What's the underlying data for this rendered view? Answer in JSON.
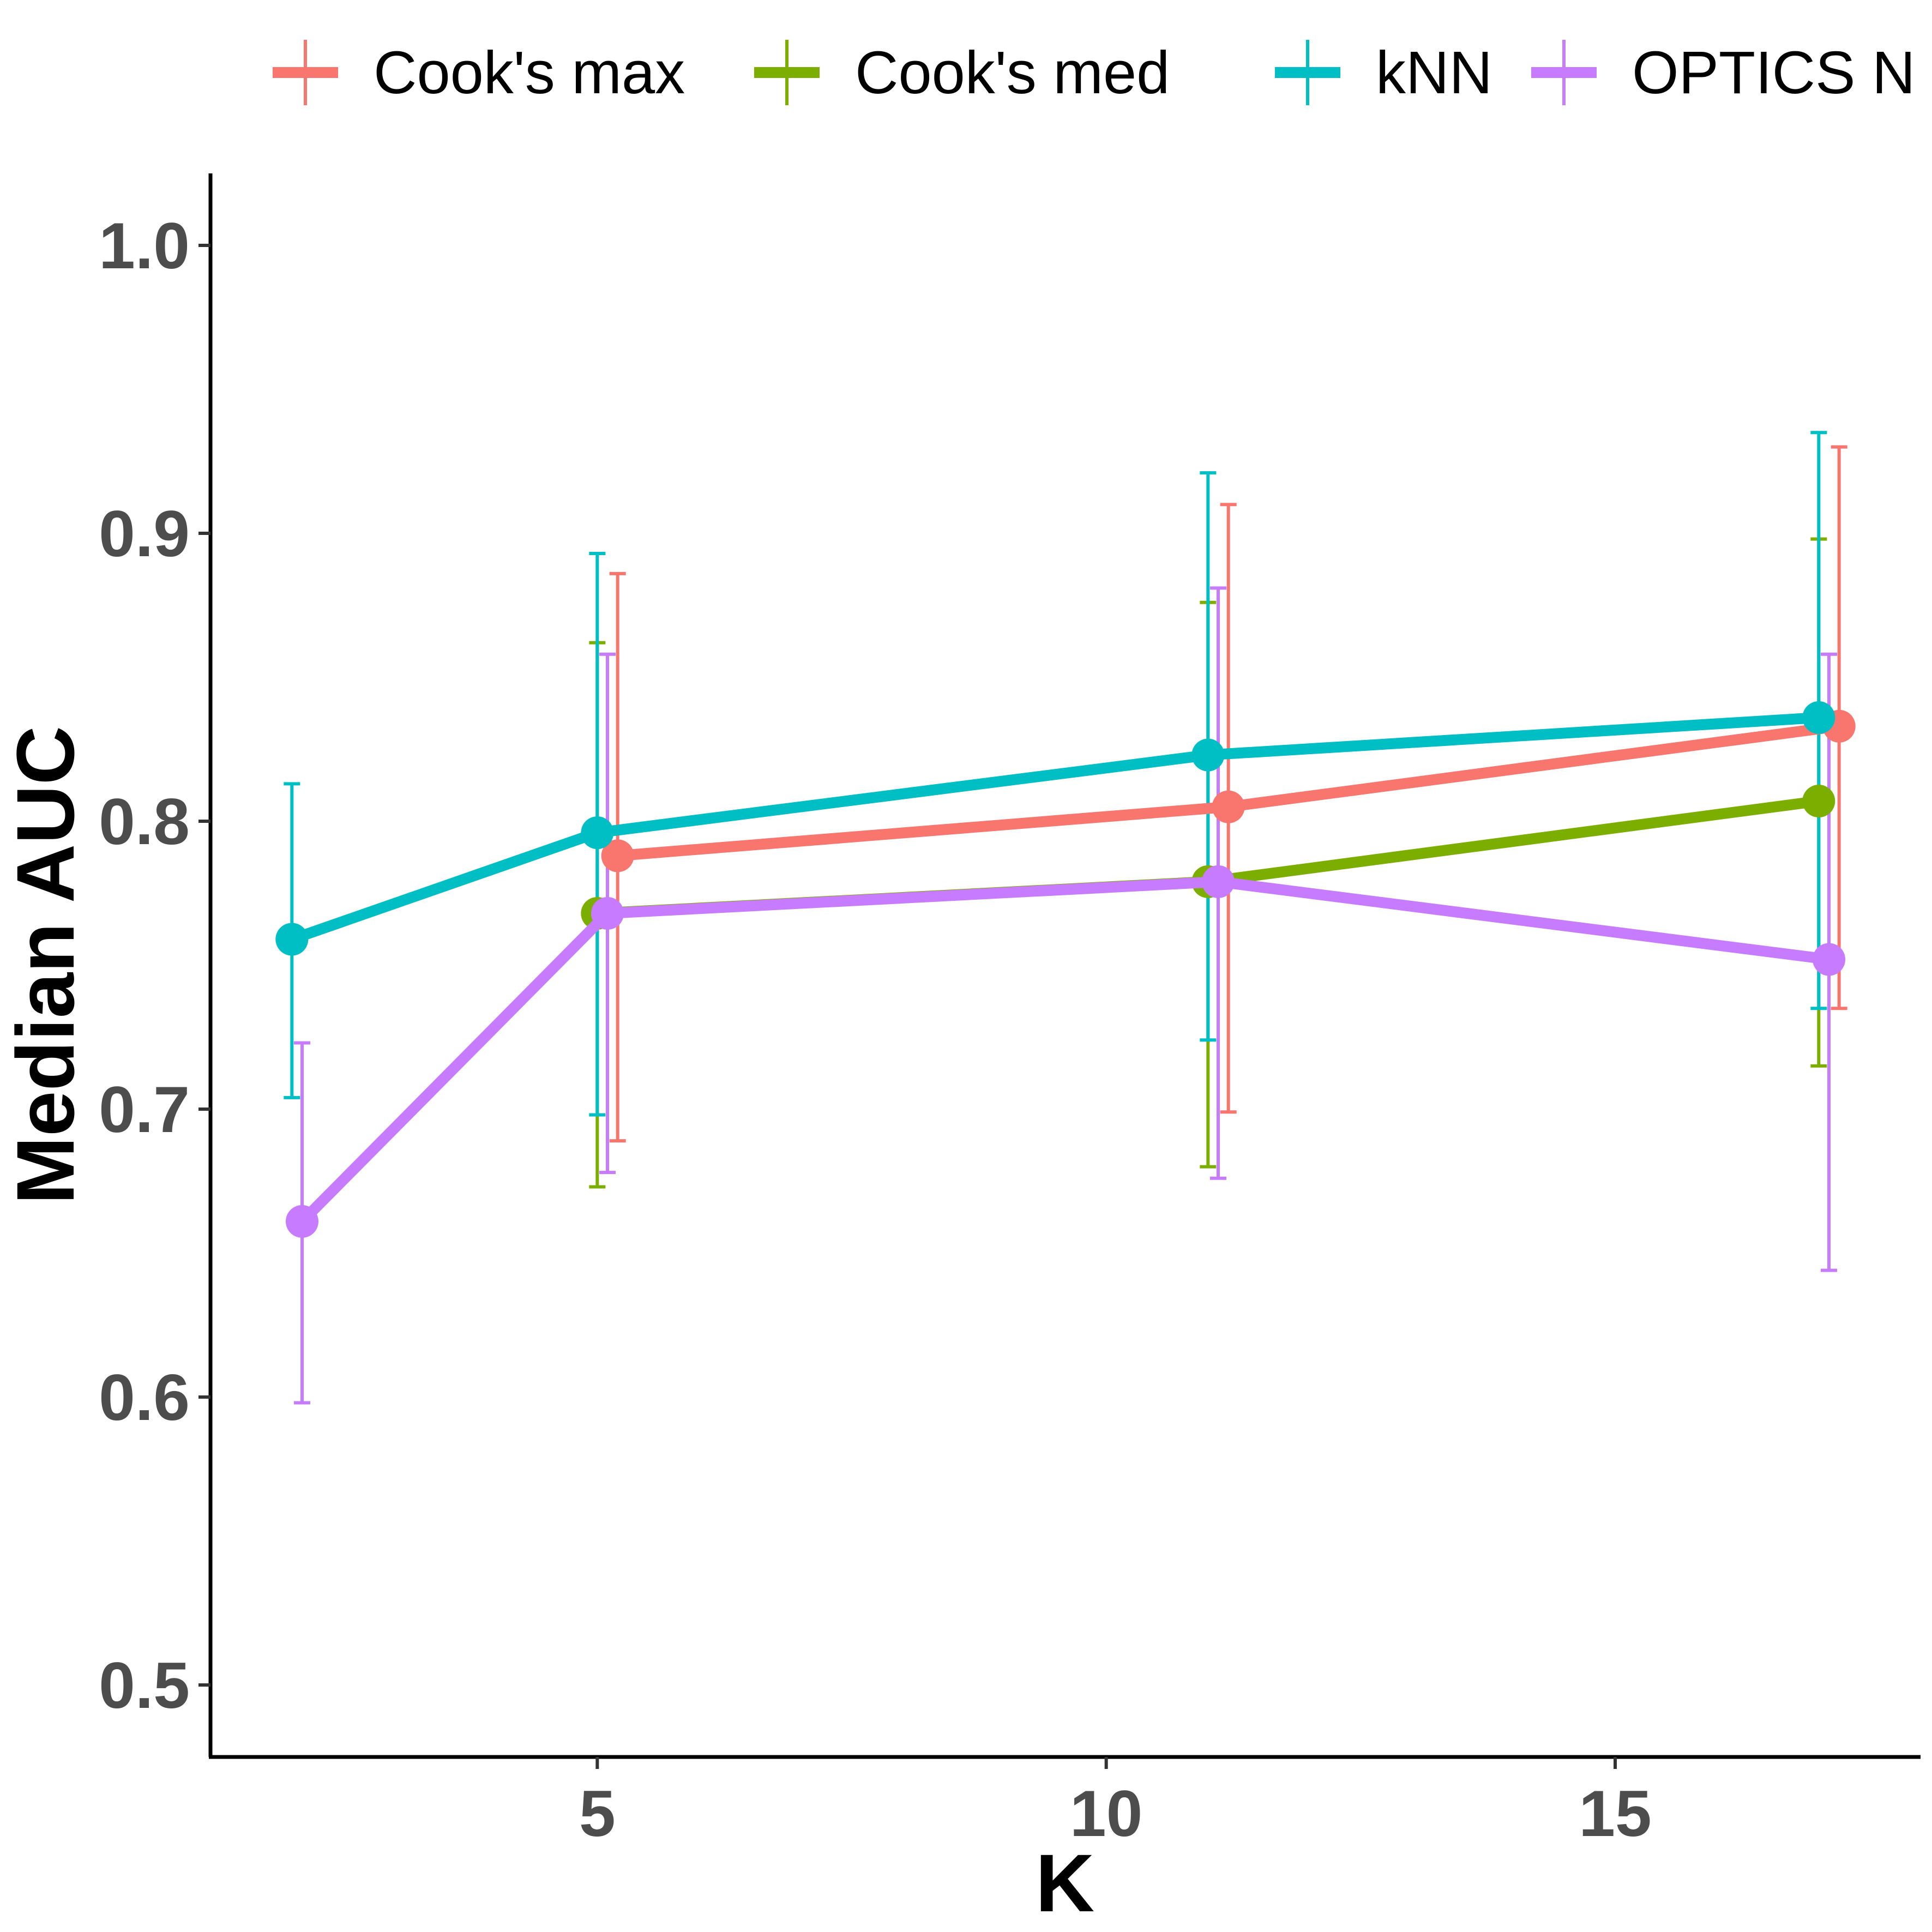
{
  "chart_data": {
    "type": "line",
    "xlabel": "K",
    "ylabel": "Median AUC",
    "xlim": [
      1.2,
      18.0
    ],
    "ylim": [
      0.475,
      1.025
    ],
    "x_ticks": [
      5,
      10,
      15
    ],
    "x_tick_labels": [
      "5",
      "10",
      "15"
    ],
    "y_ticks": [
      0.5,
      0.6,
      0.7,
      0.8,
      0.9,
      1.0
    ],
    "y_tick_labels": [
      "0.5",
      "0.6",
      "0.7",
      "0.8",
      "0.9",
      "1.0"
    ],
    "grid": false,
    "legend_position": "top",
    "series": [
      {
        "name": "Cook's max",
        "color": "#F8766D",
        "x": [
          5.2,
          11.2,
          17.2
        ],
        "y": [
          0.788,
          0.805,
          0.833
        ],
        "ymin": [
          0.689,
          0.699,
          0.735
        ],
        "ymax": [
          0.886,
          0.91,
          0.93
        ]
      },
      {
        "name": "Cook's med",
        "color": "#7CAE00",
        "x": [
          5.0,
          11.0,
          17.0
        ],
        "y": [
          0.768,
          0.779,
          0.807
        ],
        "ymin": [
          0.673,
          0.68,
          0.715
        ],
        "ymax": [
          0.862,
          0.876,
          0.898
        ]
      },
      {
        "name": "kNN",
        "color": "#00BFC4",
        "x": [
          2.0,
          5.0,
          11.0,
          17.0
        ],
        "y": [
          0.759,
          0.796,
          0.823,
          0.836
        ],
        "ymin": [
          0.704,
          0.698,
          0.724,
          0.735
        ],
        "ymax": [
          0.813,
          0.893,
          0.921,
          0.935
        ]
      },
      {
        "name": "OPTICS N",
        "color": "#C77CFF",
        "x": [
          2.1,
          5.1,
          11.1,
          17.1
        ],
        "y": [
          0.661,
          0.768,
          0.779,
          0.752
        ],
        "ymin": [
          0.598,
          0.678,
          0.676,
          0.644
        ],
        "ymax": [
          0.723,
          0.858,
          0.881,
          0.858
        ]
      }
    ]
  }
}
